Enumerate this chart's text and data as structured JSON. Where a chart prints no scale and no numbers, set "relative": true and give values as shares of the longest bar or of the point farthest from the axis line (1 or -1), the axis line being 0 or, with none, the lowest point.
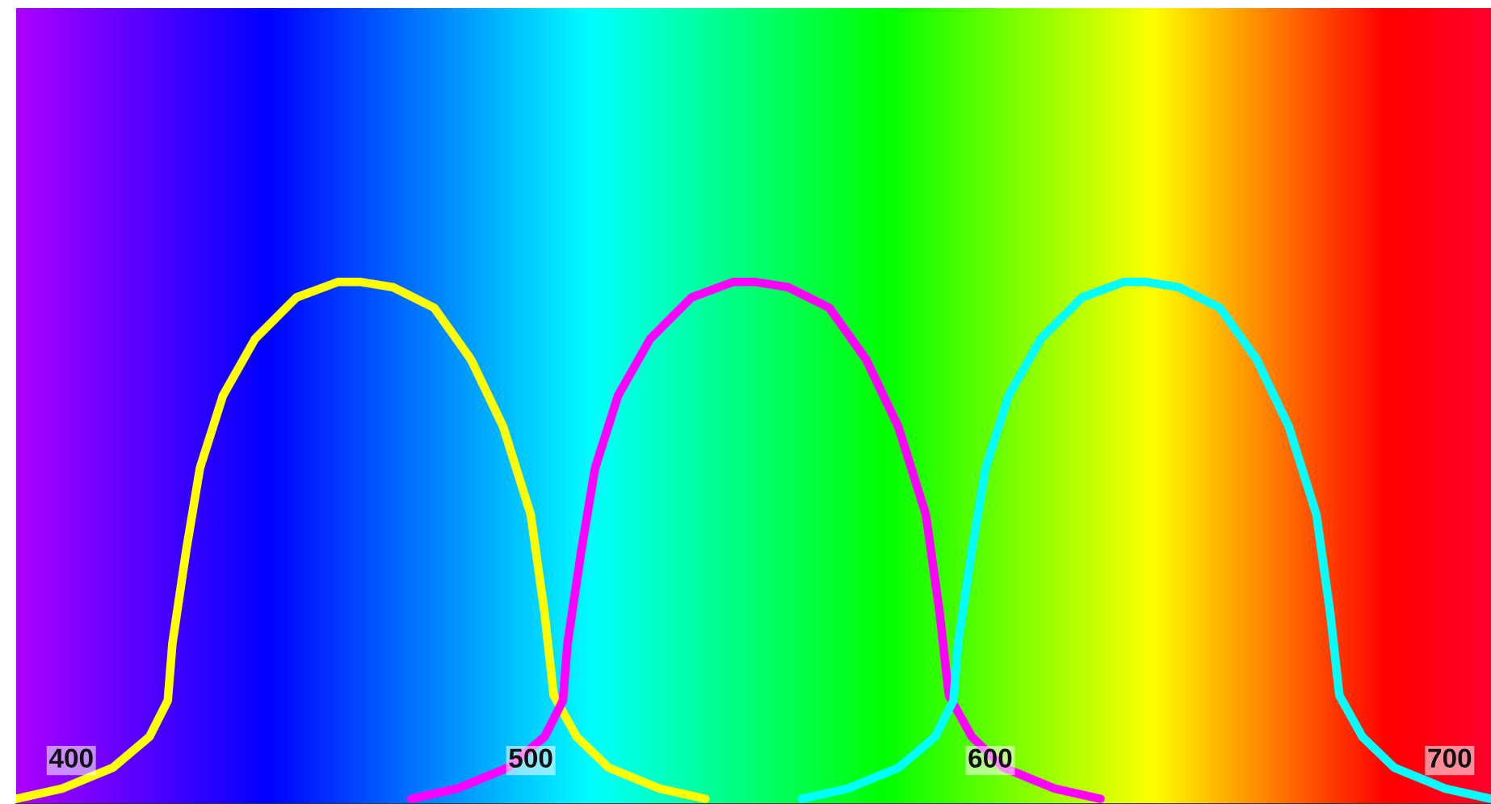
{
  "chart_data": {
    "type": "line",
    "relative": true,
    "xlim": [
      388,
      709
    ],
    "xticks": [
      400,
      500,
      600,
      700
    ],
    "grid": false,
    "legend": false,
    "marker": "none",
    "line_style": "solid",
    "series": [
      {
        "color": "#ffff00",
        "x": [
          388,
          398,
          409,
          417,
          421,
          422,
          425,
          428,
          433,
          440,
          449,
          458,
          463,
          470,
          479,
          487,
          494,
          500,
          503,
          505,
          510,
          517,
          528,
          538
        ],
        "values": [
          0,
          0.02,
          0.06,
          0.12,
          0.19,
          0.3,
          0.48,
          0.64,
          0.78,
          0.89,
          0.97,
          1,
          1,
          0.99,
          0.95,
          0.85,
          0.72,
          0.55,
          0.36,
          0.2,
          0.12,
          0.06,
          0.02,
          0
        ]
      },
      {
        "color": "#ff00ff",
        "x": [
          474,
          484,
          495,
          503,
          507,
          508,
          511,
          514,
          519,
          526,
          535,
          544,
          549,
          556,
          565,
          573,
          580,
          586,
          589,
          591,
          596,
          603,
          614,
          624
        ],
        "values": [
          0,
          0.02,
          0.06,
          0.12,
          0.19,
          0.3,
          0.48,
          0.64,
          0.78,
          0.89,
          0.97,
          1,
          1,
          0.99,
          0.95,
          0.85,
          0.72,
          0.55,
          0.36,
          0.2,
          0.12,
          0.06,
          0.02,
          0
        ]
      },
      {
        "color": "#00ffff",
        "x": [
          559,
          569,
          580,
          588,
          592,
          593,
          596,
          599,
          604,
          611,
          620,
          629,
          634,
          641,
          650,
          658,
          665,
          671,
          674,
          676,
          681,
          688,
          699,
          709
        ],
        "values": [
          0,
          0.02,
          0.06,
          0.12,
          0.19,
          0.3,
          0.48,
          0.64,
          0.78,
          0.89,
          0.97,
          1,
          1,
          0.99,
          0.95,
          0.85,
          0.72,
          0.55,
          0.36,
          0.2,
          0.12,
          0.06,
          0.02,
          0
        ]
      }
    ]
  }
}
